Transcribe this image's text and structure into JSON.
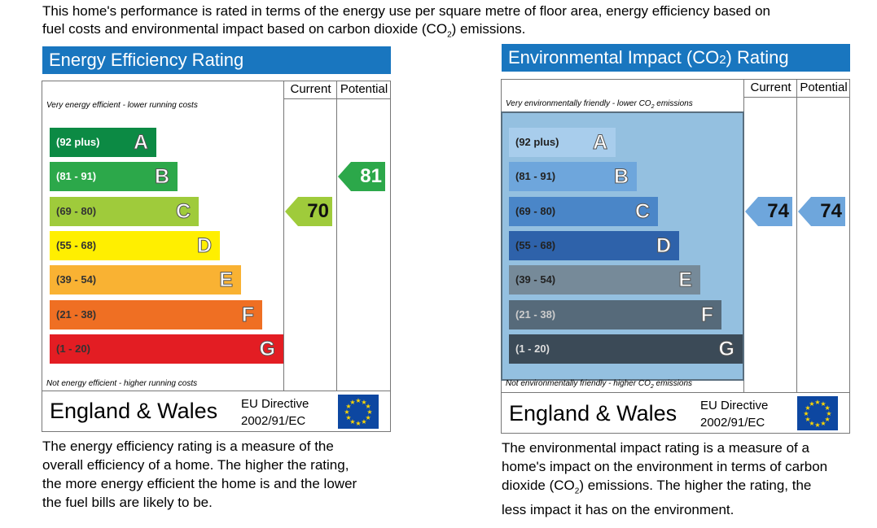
{
  "intro": {
    "line1": "This home's performance is rated in terms of the energy use per square metre of floor area, energy efficiency based on",
    "line2_pre": "fuel costs and environmental impact based on carbon dioxide (CO",
    "line2_sub": "2",
    "line2_post": ") emissions."
  },
  "chart_data": [
    {
      "type": "bar",
      "title": "Energy Efficiency Rating",
      "column_headers": [
        "Current",
        "Potential"
      ],
      "top_note": "Very energy efficient - lower running costs",
      "bottom_note": "Not energy efficient - higher running costs",
      "bands": [
        {
          "range": "(92 plus)",
          "letter": "A",
          "color": "#0c8a44",
          "range_color": "#ffffff"
        },
        {
          "range": "(81 - 91)",
          "letter": "B",
          "color": "#2ca84a",
          "range_color": "#ffffff"
        },
        {
          "range": "(69 - 80)",
          "letter": "C",
          "color": "#9fcb3b",
          "range_color": "#333333"
        },
        {
          "range": "(55 - 68)",
          "letter": "D",
          "color": "#ffef00",
          "range_color": "#333333"
        },
        {
          "range": "(39 - 54)",
          "letter": "E",
          "color": "#f9b233",
          "range_color": "#333333"
        },
        {
          "range": "(21 - 38)",
          "letter": "F",
          "color": "#ef6f23",
          "range_color": "#333333"
        },
        {
          "range": "(1 - 20)",
          "letter": "G",
          "color": "#e31d23",
          "range_color": "#333333"
        }
      ],
      "current": {
        "value": "70",
        "band": "C",
        "color": "#9fcb3b"
      },
      "potential": {
        "value": "81",
        "band": "B",
        "color": "#2ca84a"
      },
      "footer_region": "England & Wales",
      "footer_directive_1": "EU Directive",
      "footer_directive_2": "2002/91/EC"
    },
    {
      "type": "bar",
      "title_pre": "Environmental Impact (CO",
      "title_sub": "2",
      "title_post": ") Rating",
      "column_headers": [
        "Current",
        "Potential"
      ],
      "top_note_pre": "Very environmentally friendly - lower CO",
      "top_note_sub": "2",
      "top_note_post": " emissions",
      "bottom_note_pre": "Not environmentally friendly - higher CO",
      "bottom_note_sub": "2",
      "bottom_note_post": " emissions",
      "bands": [
        {
          "range": "(92 plus)",
          "letter": "A",
          "color": "#a8cdec",
          "range_color": "#222222"
        },
        {
          "range": "(81 - 91)",
          "letter": "B",
          "color": "#6ea6dc",
          "range_color": "#222222"
        },
        {
          "range": "(69 - 80)",
          "letter": "C",
          "color": "#4a86c8",
          "range_color": "#222222"
        },
        {
          "range": "(55 - 68)",
          "letter": "D",
          "color": "#2e62aa",
          "range_color": "#222222"
        },
        {
          "range": "(39 - 54)",
          "letter": "E",
          "color": "#768a99",
          "range_color": "#222222"
        },
        {
          "range": "(21 - 38)",
          "letter": "F",
          "color": "#566a7a",
          "range_color": "#cccccc"
        },
        {
          "range": "(1 - 20)",
          "letter": "G",
          "color": "#3b4a57",
          "range_color": "#dddddd"
        }
      ],
      "current": {
        "value": "74",
        "band": "C",
        "color": "#6ea6dc"
      },
      "potential": {
        "value": "74",
        "band": "C",
        "color": "#6ea6dc"
      },
      "footer_region": "England & Wales",
      "footer_directive_1": "EU Directive",
      "footer_directive_2": "2002/91/EC"
    }
  ],
  "descriptions": {
    "energy": [
      "The energy efficiency rating is a measure of the",
      "overall efficiency of a home. The higher the rating,",
      "the more energy efficient the home is and the lower",
      "the fuel bills are likely to be."
    ],
    "env_line1": "The environmental impact rating is a measure of a",
    "env_line2": "home's impact on the environment in terms of carbon",
    "env_line3_pre": "dioxide (CO",
    "env_line3_sub": "2",
    "env_line3_post": ") emissions. The higher the rating, the",
    "env_line4": "less impact it has on the environment."
  }
}
